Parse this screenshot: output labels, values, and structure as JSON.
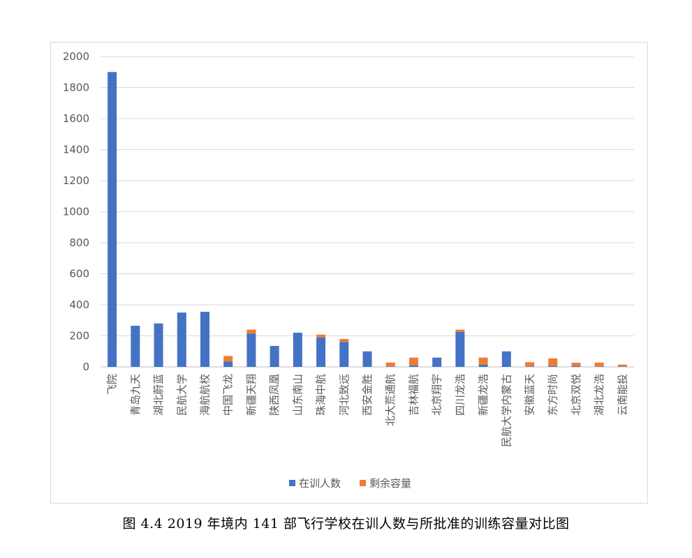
{
  "caption": "图 4.4 2019 年境内 141 部飞行学校在训人数与所批准的训练容量对比图",
  "chart_data": {
    "type": "bar",
    "stacked": true,
    "categories": [
      "飞院",
      "青岛九天",
      "湖北蔚蓝",
      "民航大学",
      "海航航校",
      "中国飞龙",
      "新疆天翔",
      "陕西凤凰",
      "山东南山",
      "珠海中航",
      "河北致远",
      "西安金胜",
      "北大荒通航",
      "吉林福航",
      "北京翔宇",
      "四川龙浩",
      "新疆龙浩",
      "民航大学内蒙古",
      "安徽蓝天",
      "东方时尚",
      "北京双悦",
      "湖北龙浩",
      "云南能投"
    ],
    "series": [
      {
        "name": "在训人数",
        "color": "#4472C4",
        "values": [
          1900,
          265,
          280,
          350,
          355,
          35,
          215,
          135,
          220,
          190,
          160,
          100,
          3,
          10,
          60,
          225,
          15,
          100,
          3,
          5,
          5,
          3,
          3
        ]
      },
      {
        "name": "剩余容量",
        "color": "#ED7D31",
        "values": [
          0,
          0,
          0,
          0,
          0,
          35,
          25,
          0,
          0,
          18,
          20,
          0,
          25,
          50,
          0,
          15,
          45,
          0,
          27,
          50,
          22,
          25,
          12
        ]
      }
    ],
    "yticks": [
      "0",
      "200",
      "400",
      "600",
      "800",
      "1000",
      "1200",
      "1400",
      "1600",
      "1800",
      "2000"
    ],
    "ylim": [
      0,
      2000
    ],
    "grid": true,
    "legend_position": "bottom"
  }
}
